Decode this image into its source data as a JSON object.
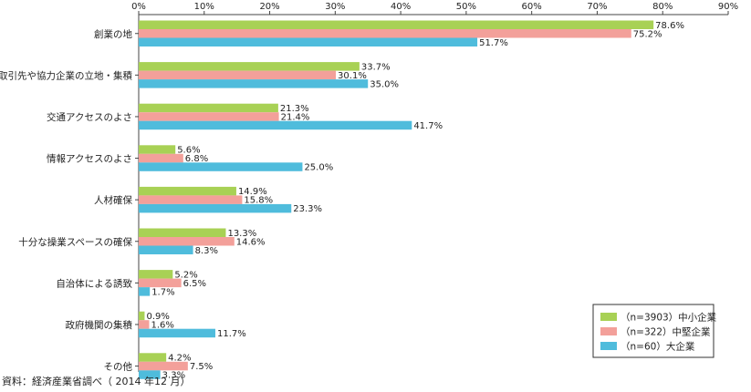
{
  "chart_data": {
    "type": "bar",
    "orientation": "horizontal",
    "categories": [
      "創業の地",
      "取引先や協力企業の立地・集積",
      "交通アクセスのよさ",
      "情報アクセスのよさ",
      "人材確保",
      "十分な操業スペースの確保",
      "自治体による誘致",
      "政府機関の集積",
      "その他"
    ],
    "series": [
      {
        "name": "（n=3903）中小企業",
        "color": "#a8d155",
        "values": [
          78.6,
          33.7,
          21.3,
          5.6,
          14.9,
          13.3,
          5.2,
          0.9,
          4.2
        ],
        "labels": [
          "78.6%",
          "33.7%",
          "21.3%",
          "5.6%",
          "14.9%",
          "13.3%",
          "5.2%",
          "0.9%",
          "4.2%"
        ]
      },
      {
        "name": "（n=322）中堅企業",
        "color": "#f3a09a",
        "values": [
          75.2,
          30.1,
          21.4,
          6.8,
          15.8,
          14.6,
          6.5,
          1.6,
          7.5
        ],
        "labels": [
          "75.2%",
          "30.1%",
          "21.4%",
          "6.8%",
          "15.8%",
          "14.6%",
          "6.5%",
          "1.6%",
          "7.5%"
        ]
      },
      {
        "name": "（n=60）大企業",
        "color": "#4fbcdc",
        "values": [
          51.7,
          35.0,
          41.7,
          25.0,
          23.3,
          8.3,
          1.7,
          11.7,
          3.3
        ],
        "labels": [
          "51.7%",
          "35.0%",
          "41.7%",
          "25.0%",
          "23.3%",
          "8.3%",
          "1.7%",
          "11.7%",
          "3.3%"
        ]
      }
    ],
    "xlim": [
      0,
      90
    ],
    "xticks": [
      0,
      10,
      20,
      30,
      40,
      50,
      60,
      70,
      80,
      90
    ],
    "xtick_labels": [
      "0%",
      "10%",
      "20%",
      "30%",
      "40%",
      "50%",
      "60%",
      "70%",
      "80%",
      "90%"
    ],
    "x_axis_position": "top",
    "legend_position": "bottom-right",
    "grid": false
  },
  "source_note": "資料：経済産業省調べ（ 2014 年12 月）"
}
